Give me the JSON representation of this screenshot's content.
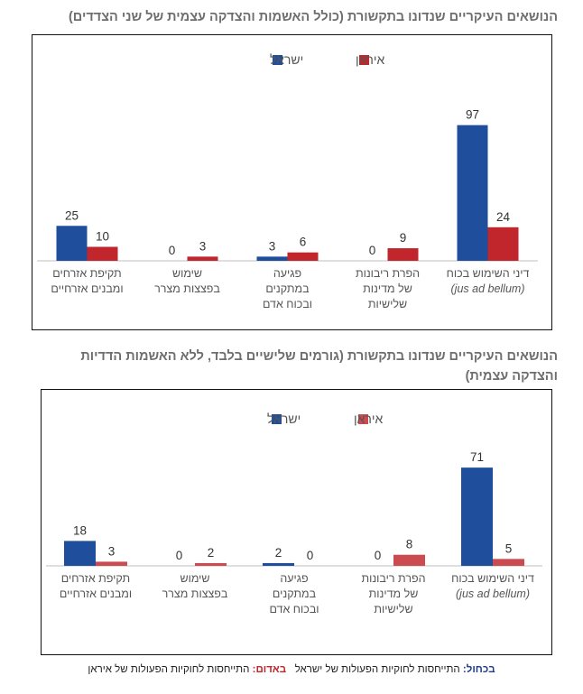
{
  "titles": {
    "chart1": "הנושאים העיקריים שנדונו בתקשורת (כולל האשמות והצדקה עצמית של שני הצדדים)",
    "chart2": "הנושאים העיקריים שנדונו בתקשורת (גורמים שלישיים בלבד, ללא האשמות הדדיות והצדקה עצמית)"
  },
  "colors": {
    "israel": "#1f4e9c",
    "iran": "#c0262c",
    "iran_light": "#cc4b50"
  },
  "footer": {
    "blue_label": "בכחול:",
    "blue_text": "התייחסות לחוקיות הפעולות של ישראל",
    "red_label": "באדום:",
    "red_text": "התייחסות לחוקיות הפעולות של איראן"
  },
  "chart_data": [
    {
      "type": "bar",
      "categories": [
        [
          "דיני השימוש בכוח",
          "(jus ad bellum)"
        ],
        [
          "הפרת ריבונות",
          "של מדינות",
          "שלישיות"
        ],
        [
          "פגיעה",
          "במתקנים",
          "ובכוח אדם"
        ],
        [
          "שימוש",
          "בפצצות מצרר"
        ],
        [
          "תקיפת אזרחים",
          "ומבנים אזרחיים"
        ]
      ],
      "series": [
        {
          "name": "ישראל",
          "values": [
            97,
            0,
            3,
            0,
            25
          ]
        },
        {
          "name": "איראן",
          "values": [
            24,
            9,
            6,
            3,
            10
          ]
        }
      ],
      "ylim": [
        0,
        100
      ],
      "legend": "top-center"
    },
    {
      "type": "bar",
      "categories": [
        [
          "דיני השימוש בכוח",
          "(jus ad bellum)"
        ],
        [
          "הפרת ריבונות",
          "של מדינות",
          "שלישיות"
        ],
        [
          "פגיעה",
          "במתקנים",
          "ובכוח אדם"
        ],
        [
          "שימוש",
          "בפצצות מצרר"
        ],
        [
          "תקיפת אזרחים",
          "ומבנים אזרחיים"
        ]
      ],
      "series": [
        {
          "name": "ישראל",
          "values": [
            71,
            0,
            2,
            0,
            18
          ]
        },
        {
          "name": "איראן",
          "values": [
            5,
            8,
            0,
            2,
            3
          ]
        }
      ],
      "ylim": [
        0,
        75
      ],
      "legend": "top-center"
    }
  ]
}
